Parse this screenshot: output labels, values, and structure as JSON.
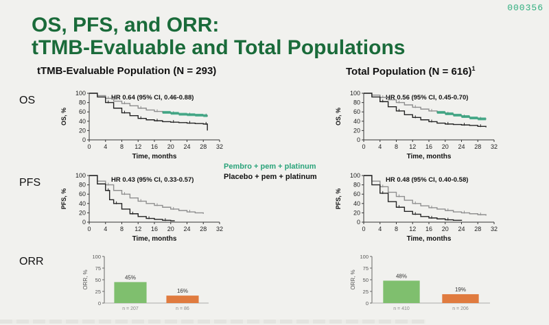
{
  "slide_code": "000356",
  "title_line1": "OS, PFS, and ORR:",
  "title_line2": "tTMB-Evaluable and Total Populations",
  "sections": {
    "left": "tTMB-Evaluable Population (N = 293)",
    "right": "Total Population (N = 616)",
    "right_sup": "1"
  },
  "row_labels": {
    "os": "OS",
    "pfs": "PFS",
    "orr": "ORR"
  },
  "legend": {
    "pembro": "Pembro + pem + platinum",
    "placebo": "Placebo + pem + platinum",
    "colors": {
      "pembro": "#2aa37a",
      "placebo": "#222222",
      "pembro_gray": "#8e8e8e"
    }
  },
  "chart_data": [
    {
      "id": "os_left",
      "type": "line",
      "ylabel": "OS, %",
      "xlabel": "Time, months",
      "annotation": "HR 0.64 (95% CI, 0.46-0.88)",
      "xlim": [
        0,
        32
      ],
      "ylim": [
        0,
        100
      ],
      "xticks": [
        0,
        4,
        8,
        12,
        16,
        20,
        24,
        28,
        32
      ],
      "yticks": [
        0,
        20,
        40,
        60,
        80,
        100
      ],
      "series": [
        {
          "x": [
            0,
            2,
            4,
            6,
            8,
            10,
            12,
            14,
            16,
            18,
            20,
            22,
            24,
            26,
            28,
            29
          ],
          "y": [
            100,
            95,
            89,
            83,
            78,
            73,
            68,
            64,
            61,
            59,
            57,
            55,
            54,
            53,
            52,
            50
          ]
        },
        {
          "x": [
            0,
            2,
            4,
            6,
            8,
            10,
            12,
            14,
            16,
            18,
            20,
            22,
            24,
            26,
            28,
            29
          ],
          "y": [
            100,
            92,
            80,
            68,
            58,
            52,
            46,
            43,
            41,
            39,
            38,
            37,
            36,
            35,
            34,
            20
          ]
        }
      ]
    },
    {
      "id": "os_right",
      "type": "line",
      "ylabel": "OS, %",
      "xlabel": "Time, months",
      "annotation": "HR 0.56 (95% CI, 0.45-0.70)",
      "xlim": [
        0,
        32
      ],
      "ylim": [
        0,
        100
      ],
      "xticks": [
        0,
        4,
        8,
        12,
        16,
        20,
        24,
        28,
        32
      ],
      "yticks": [
        0,
        20,
        40,
        60,
        80,
        100
      ],
      "series": [
        {
          "x": [
            0,
            2,
            4,
            6,
            8,
            10,
            12,
            14,
            16,
            18,
            20,
            22,
            24,
            26,
            28,
            30
          ],
          "y": [
            100,
            96,
            91,
            86,
            80,
            75,
            70,
            66,
            62,
            59,
            56,
            53,
            50,
            47,
            45,
            44
          ]
        },
        {
          "x": [
            0,
            2,
            4,
            6,
            8,
            10,
            12,
            14,
            16,
            18,
            20,
            22,
            24,
            26,
            28,
            30
          ],
          "y": [
            100,
            92,
            82,
            71,
            62,
            54,
            48,
            43,
            39,
            36,
            34,
            33,
            32,
            31,
            29,
            27
          ]
        }
      ]
    },
    {
      "id": "pfs_left",
      "type": "line",
      "ylabel": "PFS, %",
      "xlabel": "Time, months",
      "annotation": "HR 0.43 (95% CI, 0.33-0.57)",
      "xlim": [
        0,
        32
      ],
      "ylim": [
        0,
        100
      ],
      "xticks": [
        0,
        4,
        8,
        12,
        16,
        20,
        24,
        28,
        32
      ],
      "yticks": [
        0,
        20,
        40,
        60,
        80,
        100
      ],
      "series": [
        {
          "x": [
            0,
            2,
            4,
            6,
            8,
            10,
            12,
            14,
            16,
            18,
            20,
            22,
            24,
            26,
            28
          ],
          "y": [
            100,
            88,
            80,
            68,
            60,
            52,
            45,
            40,
            36,
            32,
            28,
            25,
            22,
            20,
            18
          ]
        },
        {
          "x": [
            0,
            2,
            4,
            5,
            6,
            8,
            10,
            12,
            14,
            16,
            18,
            20,
            21
          ],
          "y": [
            100,
            82,
            68,
            48,
            40,
            28,
            18,
            12,
            8,
            6,
            4,
            3,
            3
          ]
        }
      ]
    },
    {
      "id": "pfs_right",
      "type": "line",
      "ylabel": "PFS, %",
      "xlabel": "Time, months",
      "annotation": "HR 0.48 (95% CI, 0.40-0.58)",
      "xlim": [
        0,
        32
      ],
      "ylim": [
        0,
        100
      ],
      "xticks": [
        0,
        4,
        8,
        12,
        16,
        20,
        24,
        28,
        32
      ],
      "yticks": [
        0,
        20,
        40,
        60,
        80,
        100
      ],
      "series": [
        {
          "x": [
            0,
            2,
            4,
            6,
            8,
            10,
            12,
            14,
            16,
            18,
            20,
            22,
            24,
            26,
            28,
            30
          ],
          "y": [
            100,
            88,
            76,
            64,
            55,
            47,
            40,
            35,
            31,
            28,
            25,
            22,
            20,
            18,
            16,
            14
          ]
        },
        {
          "x": [
            0,
            2,
            4,
            6,
            8,
            10,
            12,
            14,
            16,
            18,
            20,
            22,
            24
          ],
          "y": [
            100,
            80,
            62,
            44,
            32,
            23,
            17,
            12,
            9,
            7,
            5,
            4,
            3
          ]
        }
      ]
    },
    {
      "id": "orr_left",
      "type": "bar",
      "ylabel": "ORR, %",
      "ylim": [
        0,
        100
      ],
      "yticks": [
        0,
        25,
        50,
        75,
        100
      ],
      "values": [
        45,
        16
      ],
      "value_labels": [
        "45%",
        "16%"
      ],
      "categories": [
        "n = 207",
        "n = 86"
      ],
      "colors": [
        "#7fbf6e",
        "#e07b3f"
      ]
    },
    {
      "id": "orr_right",
      "type": "bar",
      "ylabel": "ORR, %",
      "ylim": [
        0,
        100
      ],
      "yticks": [
        0,
        25,
        50,
        75,
        100
      ],
      "values": [
        48,
        19
      ],
      "value_labels": [
        "48%",
        "19%"
      ],
      "categories": [
        "n = 410",
        "n = 206"
      ],
      "colors": [
        "#7fbf6e",
        "#e07b3f"
      ]
    }
  ]
}
